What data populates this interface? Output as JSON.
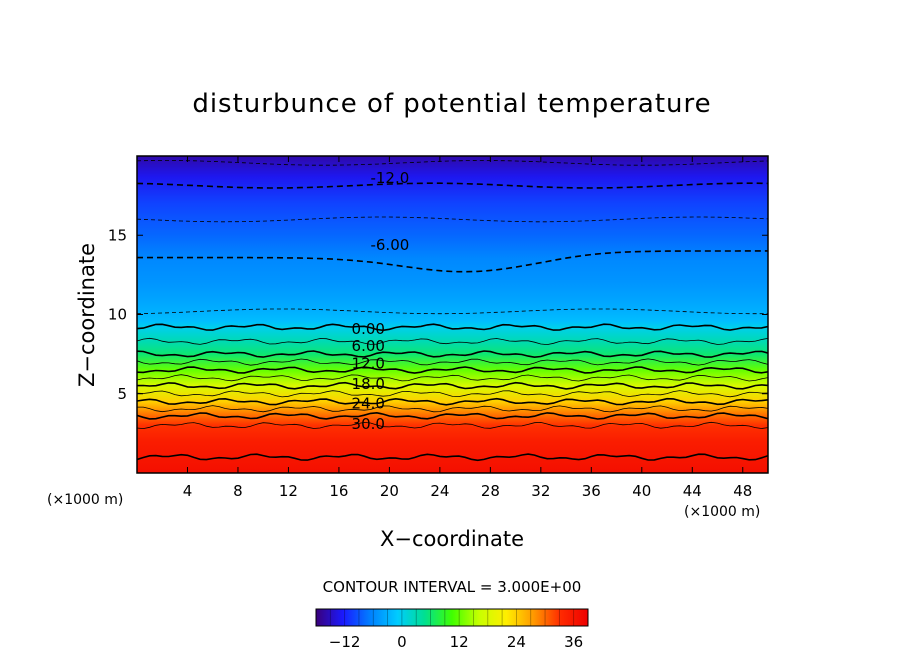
{
  "chart_data": {
    "type": "contour",
    "title": "disturbunce of potential temperature",
    "xlabel": "X−coordinate",
    "ylabel": "Z−coordinate",
    "x_unit": "(×1000 m)",
    "y_unit": "(×1000 m)",
    "xlim": [
      0,
      50
    ],
    "ylim": [
      0,
      20
    ],
    "x_ticks": [
      4,
      8,
      12,
      16,
      20,
      24,
      28,
      32,
      36,
      40,
      44,
      48
    ],
    "y_ticks": [
      5,
      10,
      15
    ],
    "contour_interval_text": "CONTOUR INTERVAL = 3.000E+00",
    "contour_interval": 3.0,
    "value_range": [
      -18,
      39
    ],
    "profile_z": [
      0,
      1,
      2,
      3,
      3.6,
      4.5,
      5.5,
      6.5,
      7.5,
      8.3,
      9.2,
      9.6,
      10.2,
      11,
      12,
      13.5,
      15,
      17,
      18.7,
      20
    ],
    "profile_value": [
      37,
      36,
      35,
      33,
      30,
      24,
      18,
      12,
      6,
      3,
      0,
      -2,
      -3,
      -4,
      -5,
      -6,
      -8,
      -10,
      -13,
      -16
    ],
    "contour_labels": [
      {
        "text": "-12.0",
        "x": 18.5,
        "z": 18.6
      },
      {
        "text": "-6.00",
        "x": 18.5,
        "z": 14.4
      },
      {
        "text": "0.00",
        "x": 17,
        "z": 9.1
      },
      {
        "text": "6.00",
        "x": 17,
        "z": 8.0
      },
      {
        "text": "12.0",
        "x": 17,
        "z": 6.9
      },
      {
        "text": "18.0",
        "x": 17,
        "z": 5.6
      },
      {
        "text": "24.0",
        "x": 17,
        "z": 4.4
      },
      {
        "text": "30.0",
        "x": 17,
        "z": 3.1
      }
    ],
    "colorbar": {
      "ticks": [
        -12,
        0,
        12,
        24,
        36
      ],
      "range": [
        -18,
        39
      ],
      "colormap": "rainbow",
      "colors": [
        "#3a007a",
        "#1a1aff",
        "#0080ff",
        "#00ccff",
        "#00e090",
        "#40ff00",
        "#c8ff00",
        "#ffee00",
        "#ff9900",
        "#ff2a00",
        "#ee0000"
      ]
    }
  }
}
